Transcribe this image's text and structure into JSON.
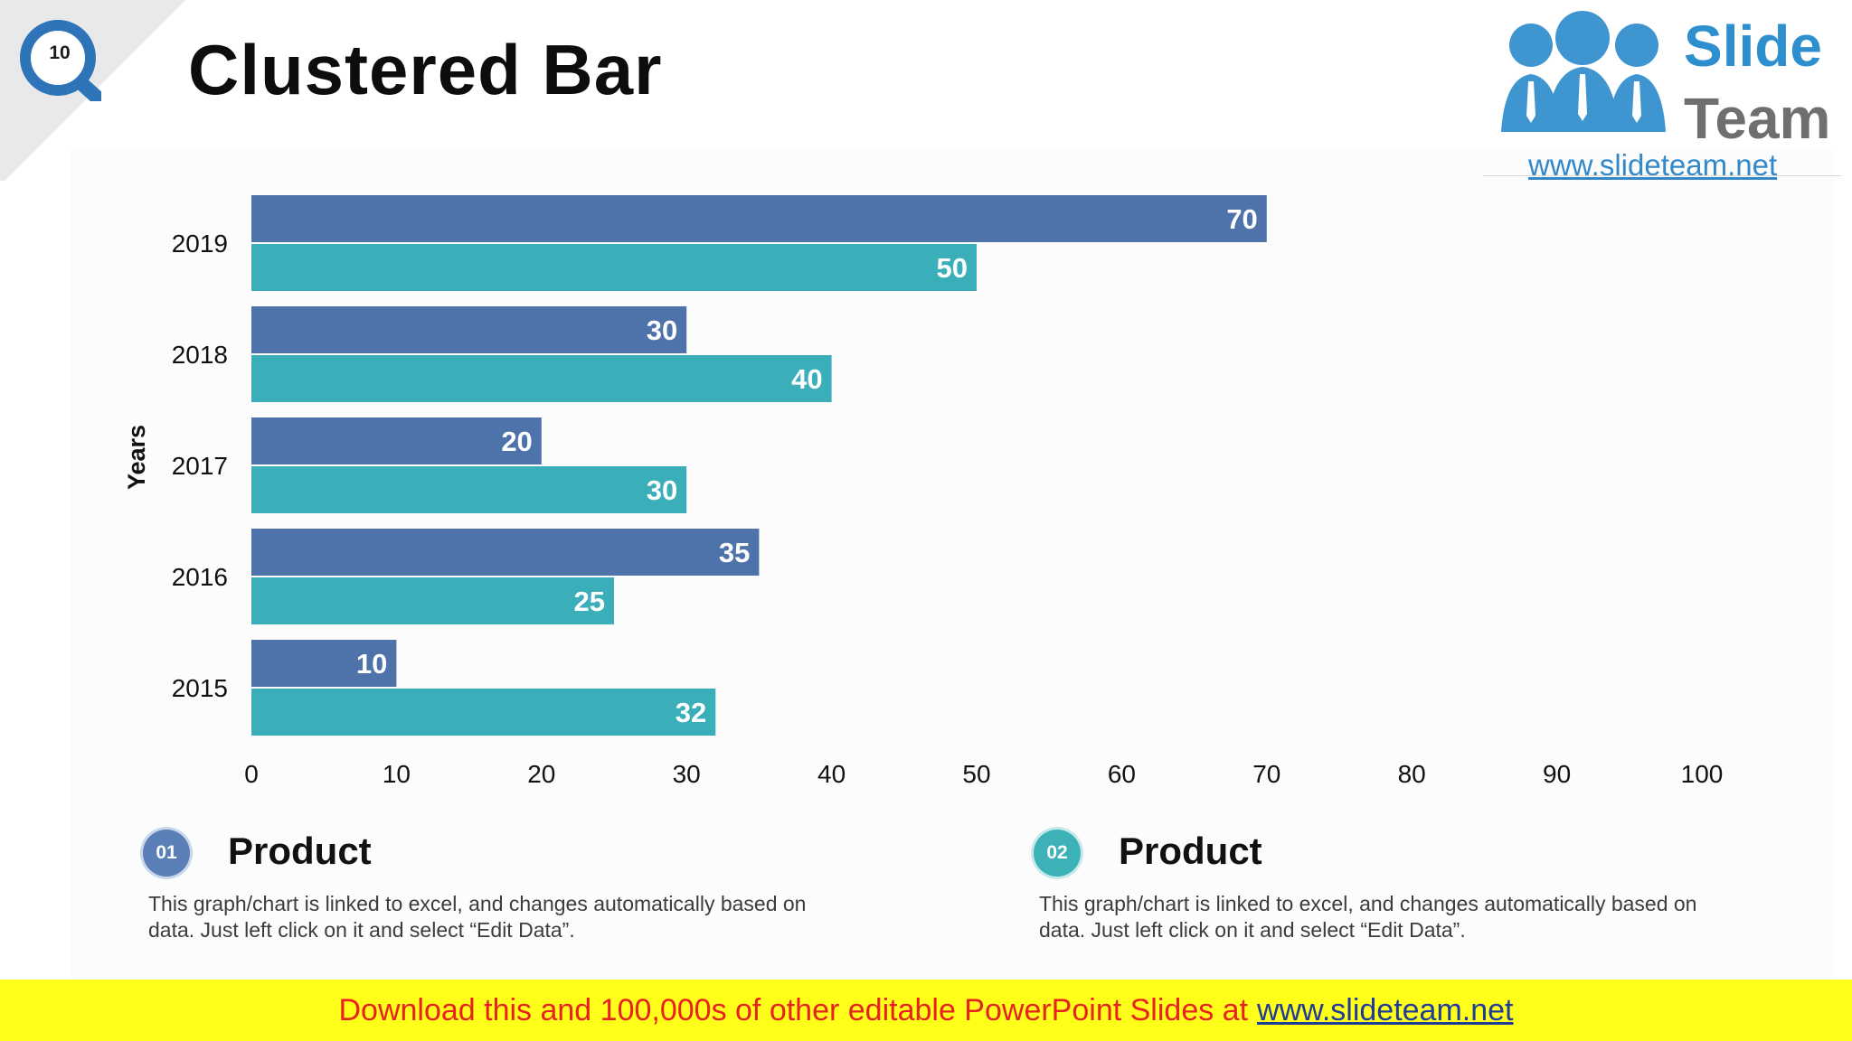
{
  "page": {
    "number": "10",
    "title": "Clustered Bar"
  },
  "logo": {
    "line1": "Slide",
    "line2": "Team",
    "url": "www.slideteam.net"
  },
  "colors": {
    "series1": "#4e73aa",
    "series2": "#3aafb9",
    "banner_bg": "#ffff19",
    "banner_text": "#e8231f"
  },
  "chart_data": {
    "type": "bar",
    "orientation": "horizontal",
    "title": "",
    "ylabel": "Years",
    "xlabel": "",
    "categories": [
      "2019",
      "2018",
      "2017",
      "2016",
      "2015"
    ],
    "series": [
      {
        "name": "Product 01",
        "values": [
          70,
          30,
          20,
          35,
          10
        ]
      },
      {
        "name": "Product 02",
        "values": [
          50,
          40,
          30,
          25,
          32
        ]
      }
    ],
    "xlim": [
      0,
      100
    ],
    "xticks": [
      0,
      10,
      20,
      30,
      40,
      50,
      60,
      70,
      80,
      90,
      100
    ],
    "grid": false
  },
  "footer": {
    "items": [
      {
        "number": "01",
        "title": "Product",
        "description": "This graph/chart is linked to excel, and changes automatically based on data. Just left click on it and select “Edit Data”."
      },
      {
        "number": "02",
        "title": "Product",
        "description": "This graph/chart is linked to excel, and changes automatically based on data. Just left click on it and select “Edit Data”."
      }
    ]
  },
  "banner": {
    "text": "Download this and 100,000s of other editable PowerPoint Slides at",
    "link": "www.slideteam.net"
  }
}
